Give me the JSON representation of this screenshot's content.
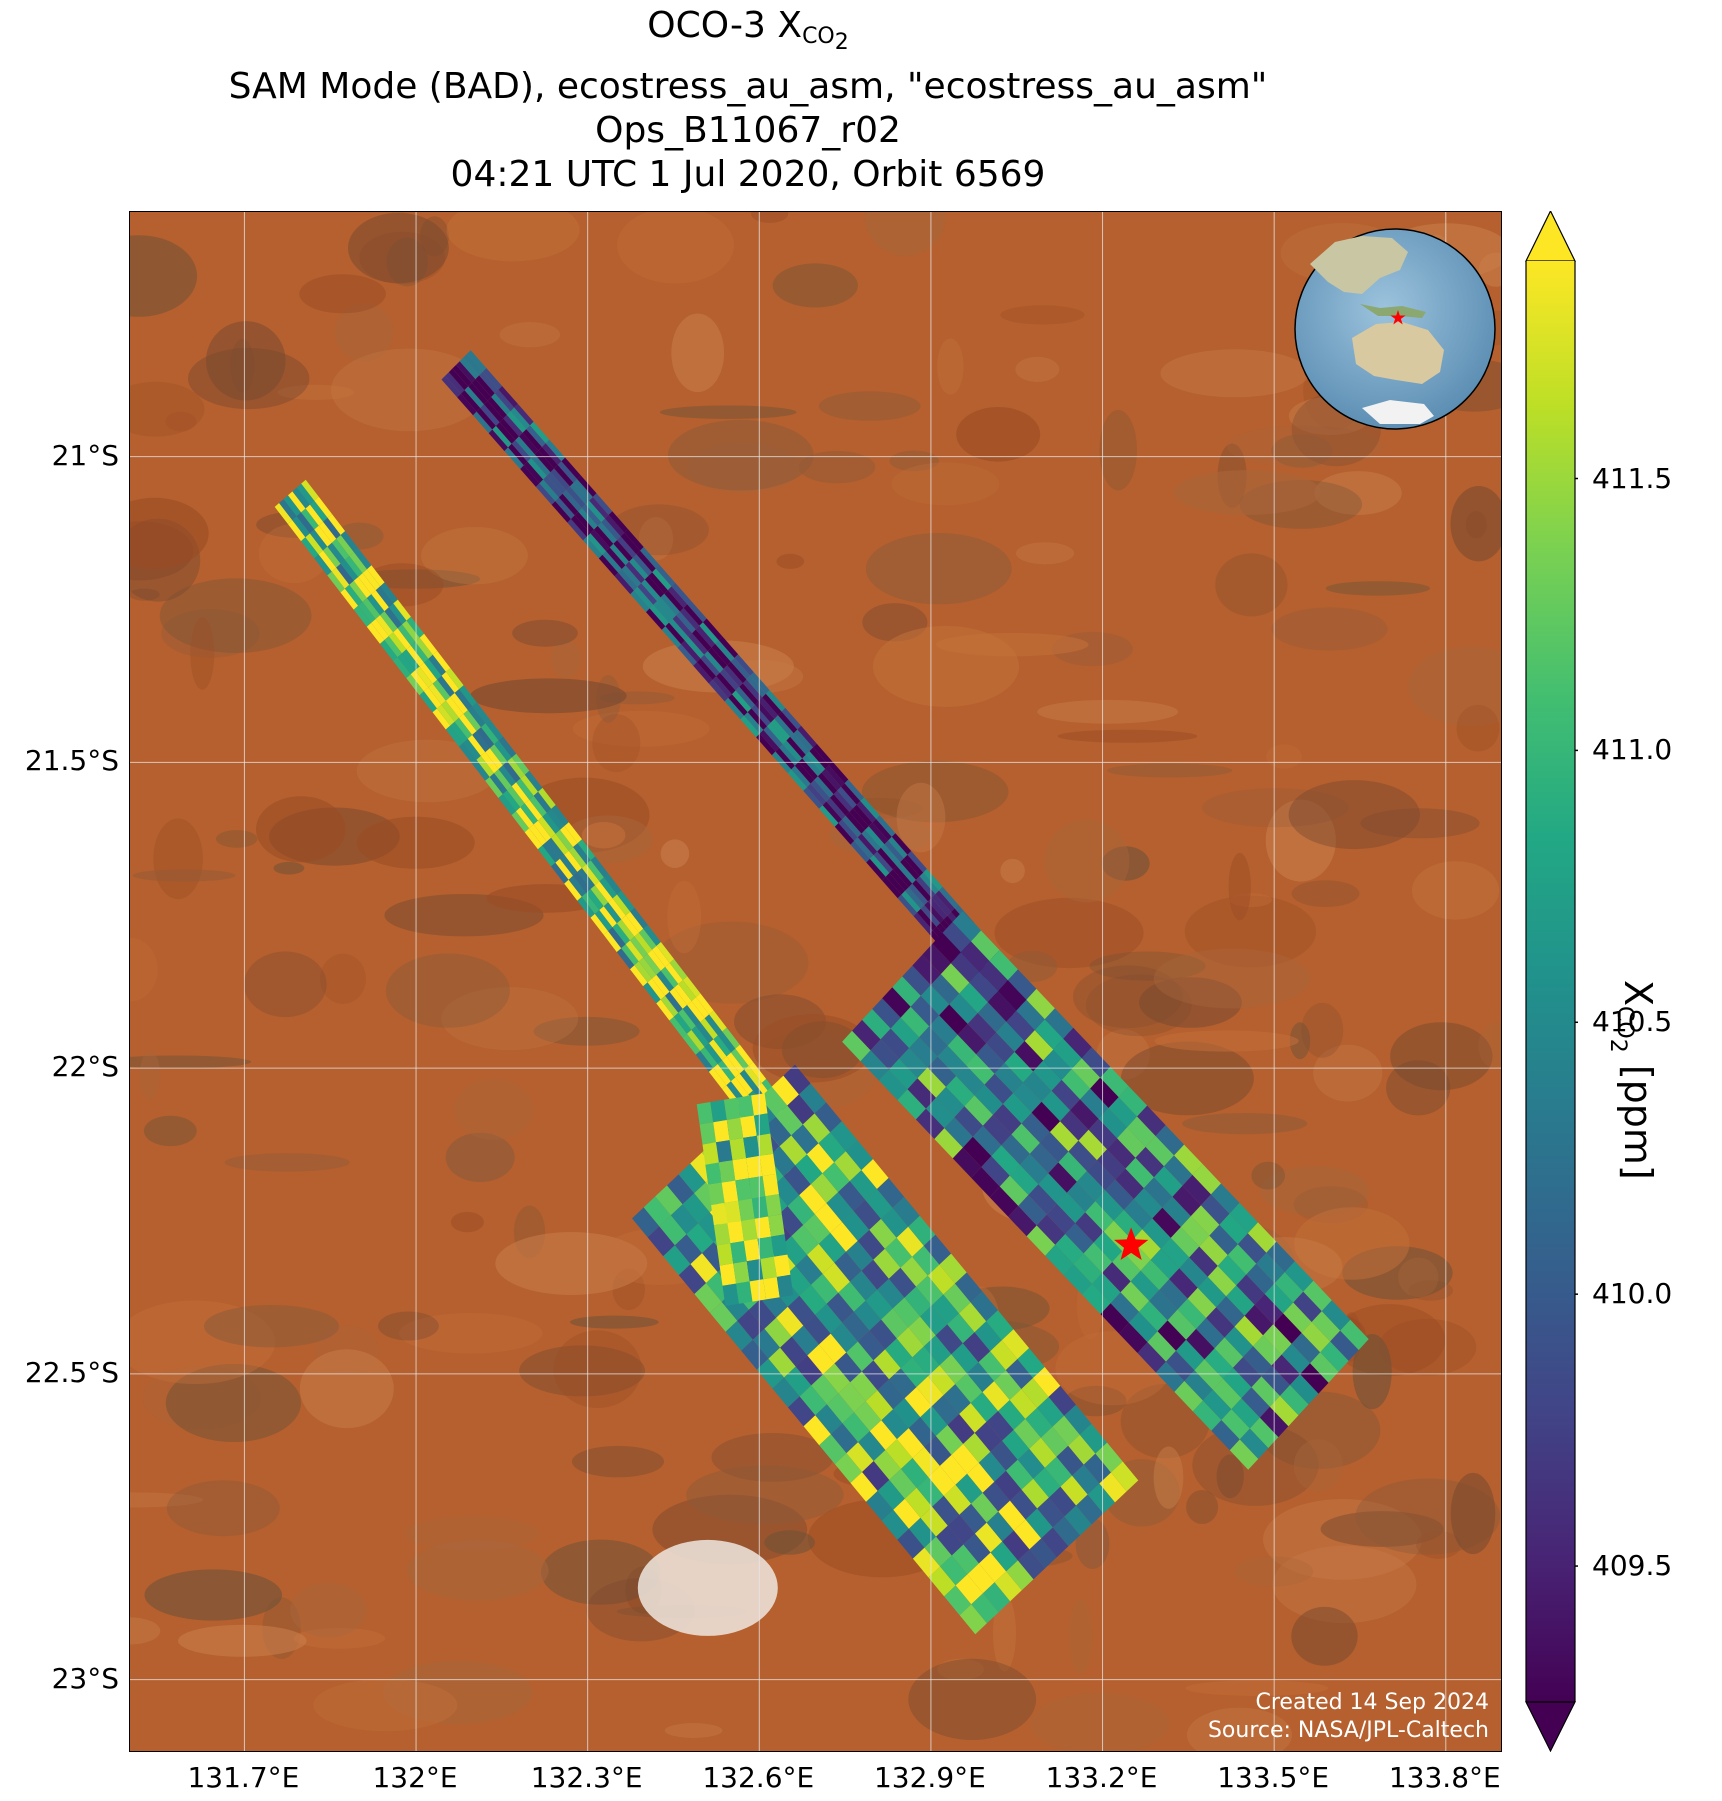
{
  "title": {
    "line1_prefix": "OCO-3 X",
    "line1_sub": "CO",
    "line1_subsub": "2",
    "line2": "SAM Mode (BAD), ecostress_au_asm, \"ecostress_au_asm\"",
    "line3": "Ops_B11067_r02",
    "line4": "04:21 UTC 1 Jul 2020, Orbit 6569"
  },
  "map": {
    "lat_labels": [
      "21°S",
      "21.5°S",
      "22°S",
      "22.5°S",
      "23°S"
    ],
    "lat_values": [
      -21.0,
      -21.5,
      -22.0,
      -22.5,
      -23.0
    ],
    "lon_labels": [
      "131.7°E",
      "132°E",
      "132.3°E",
      "132.6°E",
      "132.9°E",
      "133.2°E",
      "133.5°E",
      "133.8°E"
    ],
    "lon_values": [
      131.7,
      132.0,
      132.3,
      132.6,
      132.9,
      133.2,
      133.5,
      133.8
    ],
    "lon_range": [
      131.5,
      133.9
    ],
    "lat_range": [
      -23.12,
      -20.6
    ],
    "target_marker": {
      "lon": 133.25,
      "lat": -22.29,
      "symbol": "star",
      "color": "#ff0000"
    },
    "inset_globe": {
      "marker": "star",
      "marker_color": "#ff0000",
      "region": "Australia"
    },
    "credit_line1": "Created 14 Sep 2024",
    "credit_line2": "Source: NASA/JPL-Caltech",
    "colors": {
      "land": "#b5602e",
      "grid": "#e8e8e8"
    }
  },
  "colorbar": {
    "label_prefix": "X",
    "label_sub": "CO",
    "label_subsub": "2",
    "label_suffix": " [ppm]",
    "ticks": [
      "409.5",
      "410.0",
      "410.5",
      "411.0",
      "411.5"
    ],
    "tick_values": [
      409.5,
      410.0,
      410.5,
      411.0,
      411.5
    ],
    "vmin": 409.25,
    "vmax": 411.9,
    "colormap": "viridis",
    "extend": "both"
  }
}
